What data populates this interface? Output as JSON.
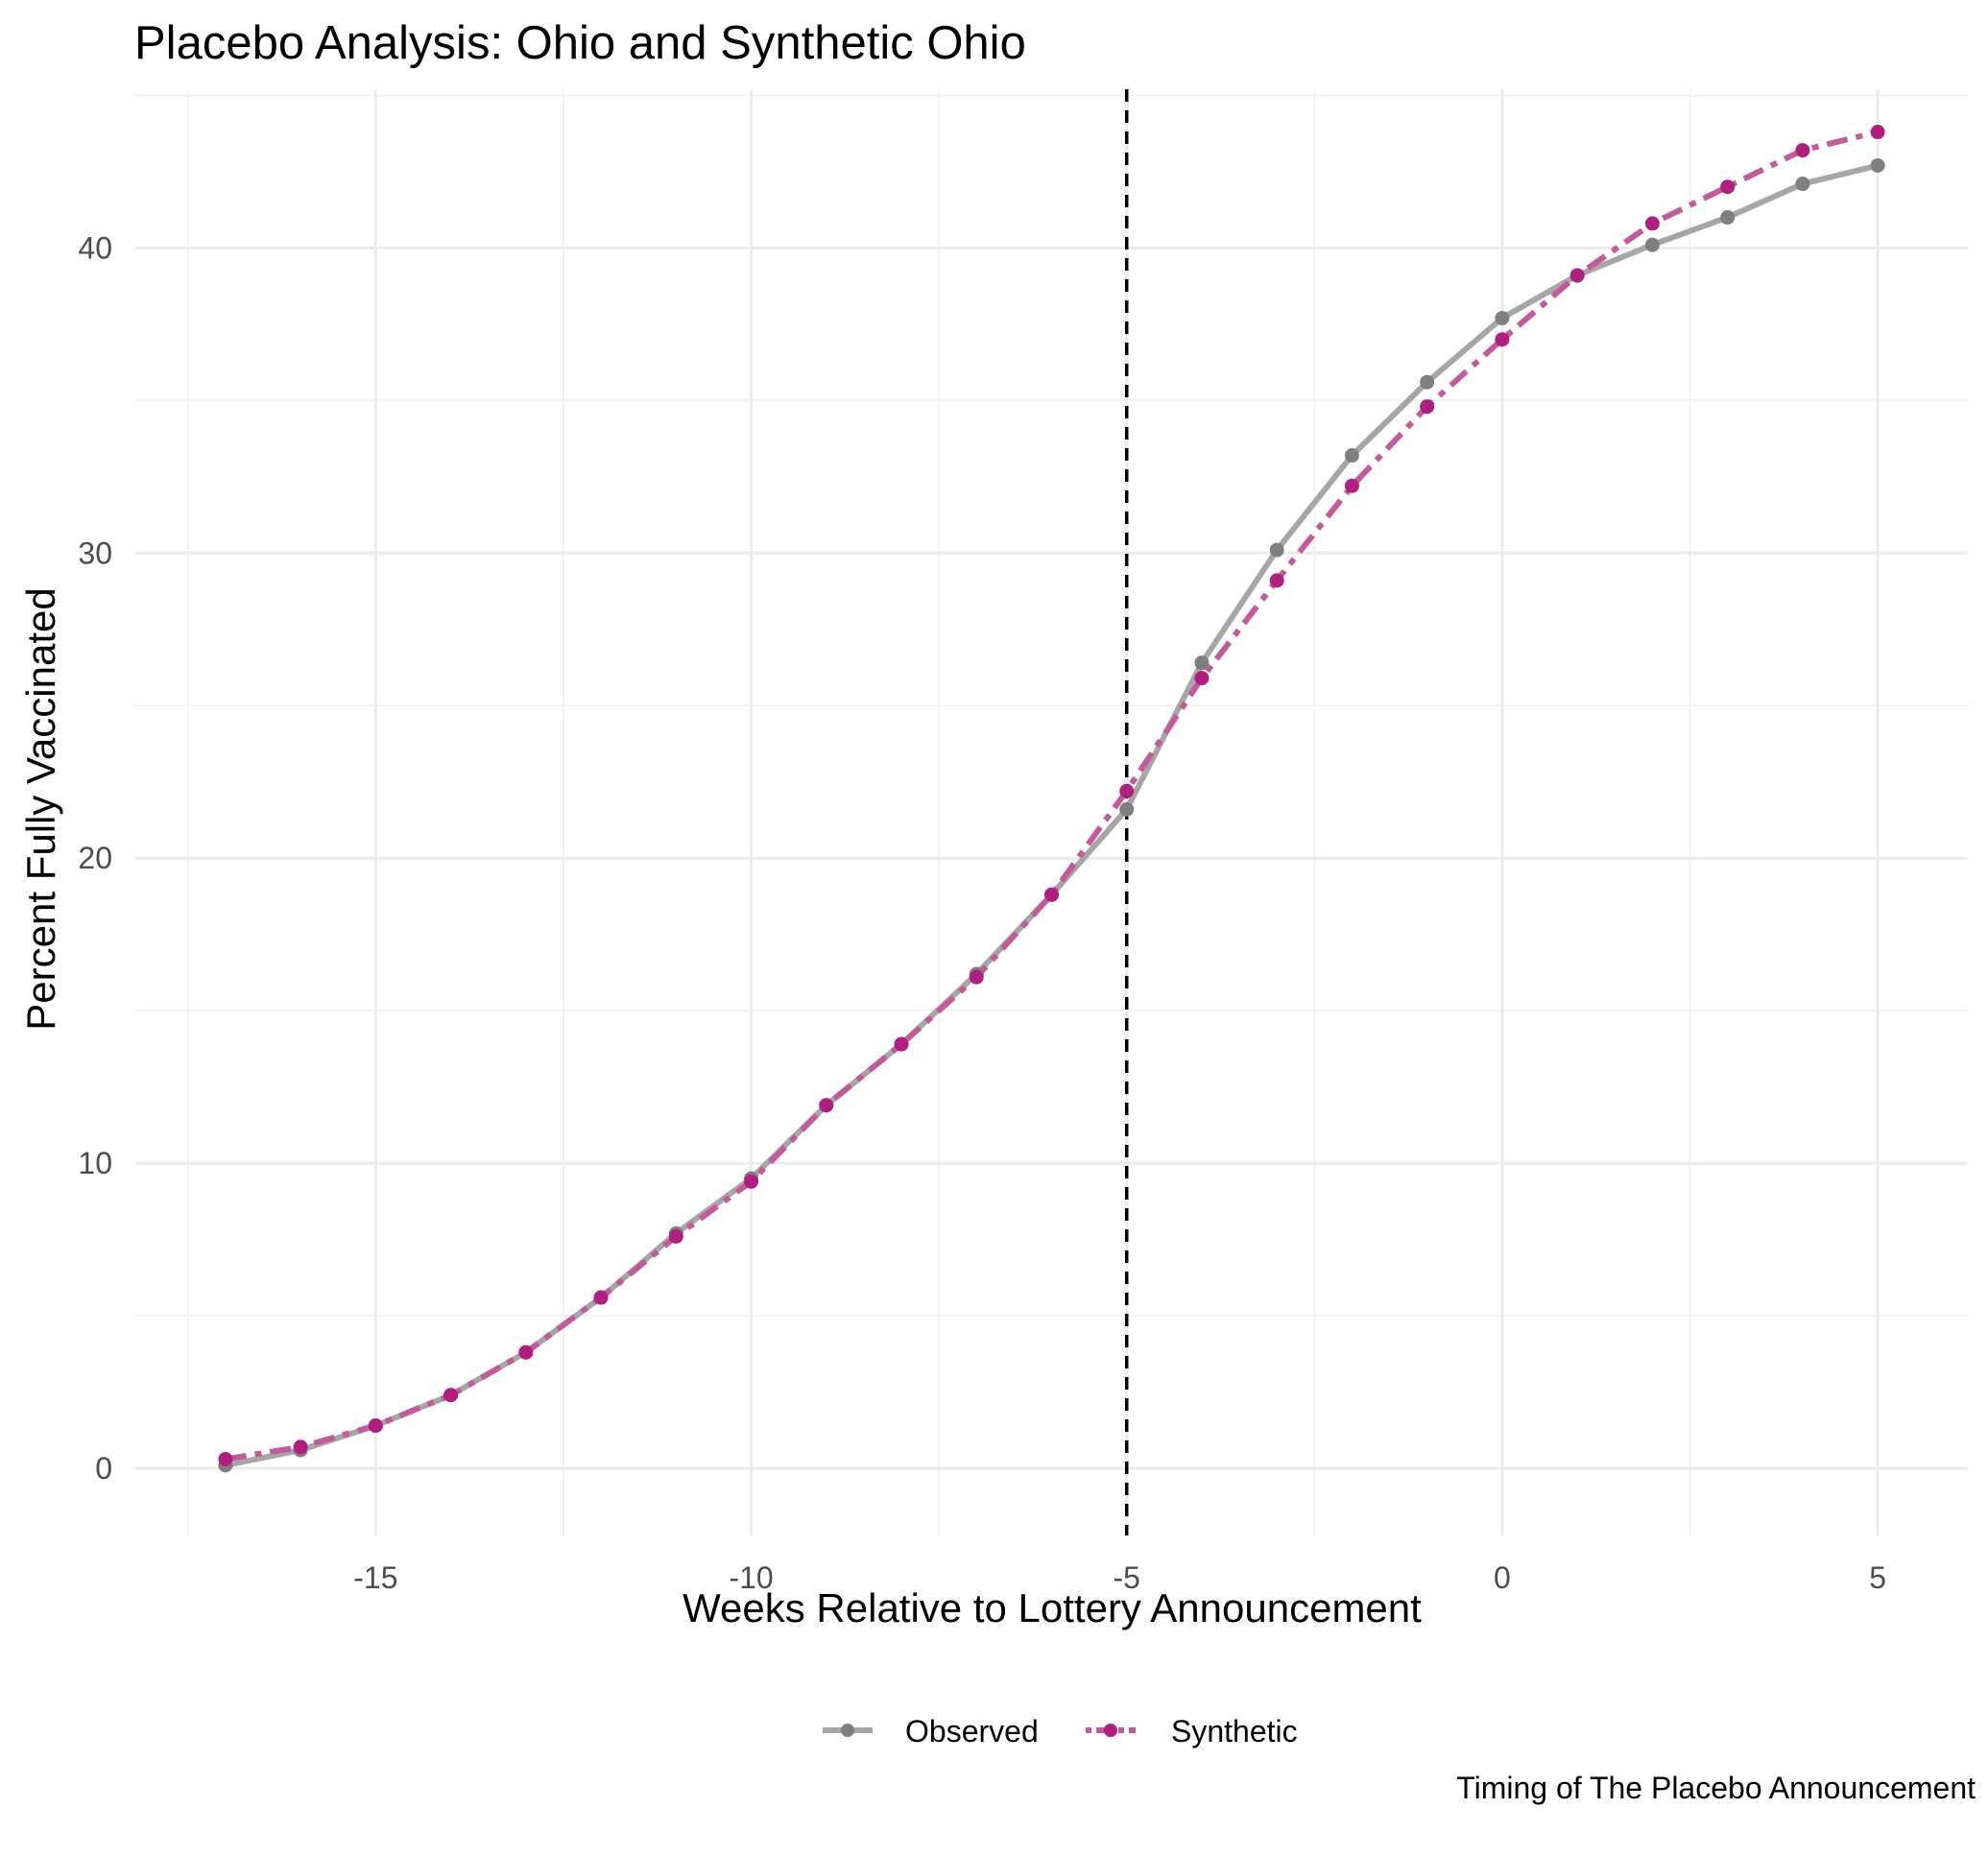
{
  "chart_data": {
    "type": "line",
    "title": "Placebo Analysis: Ohio and Synthetic Ohio",
    "xlabel": "Weeks Relative to Lottery Announcement",
    "ylabel": "Percent Fully Vaccinated",
    "caption": "Timing of The Placebo Announcement",
    "xlim": [
      -18.2,
      6.2
    ],
    "ylim": [
      -2.2,
      45.2
    ],
    "x_ticks": [
      -15,
      -10,
      -5,
      0,
      5
    ],
    "x_tick_labels": [
      "-15",
      "-10",
      "-5",
      "0",
      "5"
    ],
    "x_minor_ticks": [
      -17.5,
      -12.5,
      -7.5,
      -2.5,
      2.5
    ],
    "y_ticks": [
      0,
      10,
      20,
      30,
      40
    ],
    "y_tick_labels": [
      "0",
      "10",
      "20",
      "30",
      "40"
    ],
    "y_minor_ticks": [
      5,
      15,
      25,
      35,
      45
    ],
    "grid": true,
    "legend_position": "bottom",
    "vline": {
      "x": -5,
      "style": "dashed",
      "color": "#000000"
    },
    "x": [
      -17,
      -16,
      -15,
      -14,
      -13,
      -12,
      -11,
      -10,
      -9,
      -8,
      -7,
      -6,
      -5,
      -4,
      -3,
      -2,
      -1,
      0,
      1,
      2,
      3,
      4,
      5
    ],
    "series": [
      {
        "name": "Observed",
        "line_color": "#a6a6a6",
        "point_color": "#7f7f7f",
        "line_style": "solid",
        "values": [
          0.1,
          0.6,
          1.4,
          2.4,
          3.8,
          5.6,
          7.7,
          9.5,
          11.9,
          13.9,
          16.2,
          18.8,
          21.6,
          26.4,
          30.1,
          33.2,
          35.6,
          37.7,
          39.1,
          40.1,
          41.0,
          42.1,
          42.7
        ]
      },
      {
        "name": "Synthetic",
        "line_color": "#c45a9b",
        "point_color": "#b01f7d",
        "line_style": "dashed",
        "values": [
          0.3,
          0.7,
          1.4,
          2.4,
          3.8,
          5.6,
          7.6,
          9.4,
          11.9,
          13.9,
          16.1,
          18.8,
          22.2,
          25.9,
          29.1,
          32.2,
          34.8,
          37.0,
          39.1,
          40.8,
          42.0,
          43.2,
          43.8
        ]
      }
    ]
  }
}
